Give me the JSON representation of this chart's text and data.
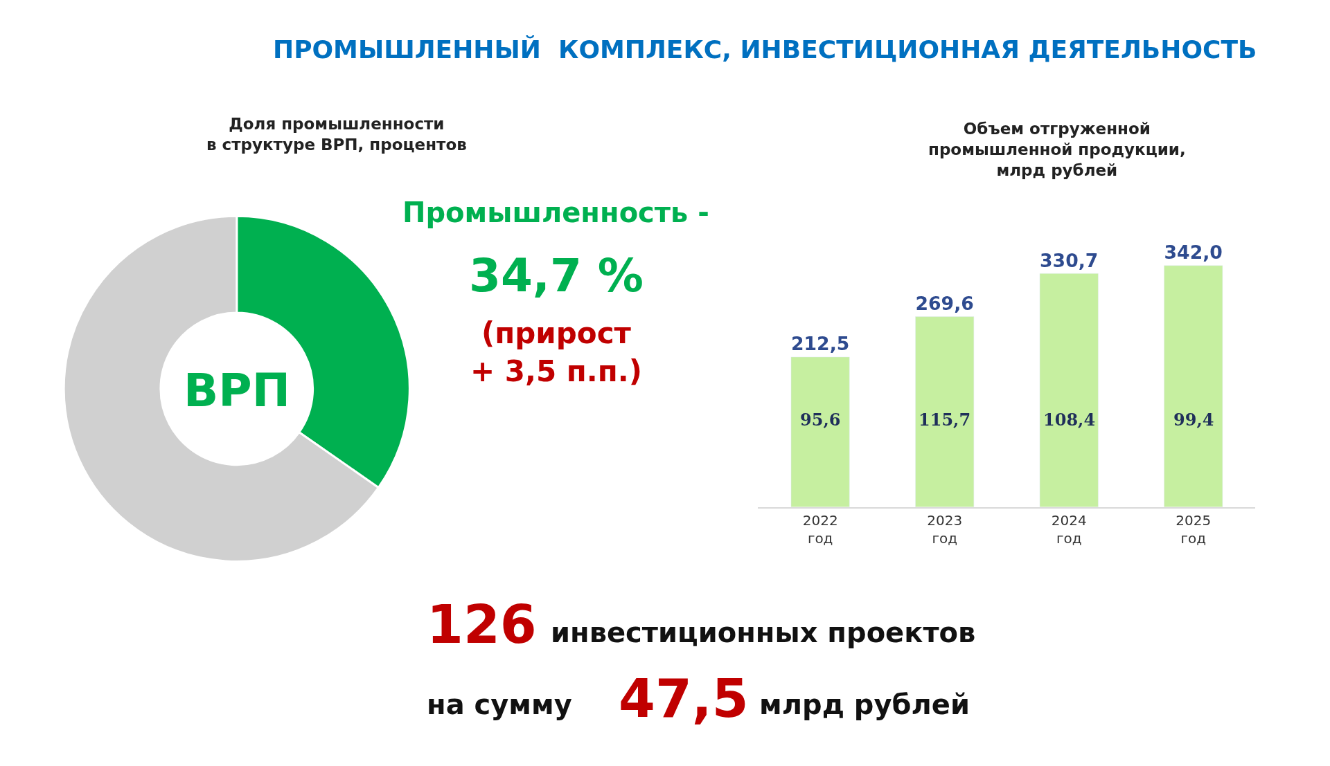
{
  "chart_data": [
    {
      "type": "donut",
      "title": "ПРОМЫШЛЕННЫЙ  КОМПЛЕКС, ИНВЕСТИЦИОННАЯ ДЕЯТЕЛЬНОСТЬ",
      "subtitle": "Доля промышленности\nв структуре ВРП, процентов",
      "categories": [
        null,
        null
      ],
      "values": [
        34.7,
        65.3
      ],
      "colors": [
        "#00b050",
        "#d0d0d0"
      ],
      "annotations": [
        "ВРП",
        "Промышленность -",
        "34,7 %",
        "(прирост\n+ 3,5 п.п.)"
      ]
    },
    {
      "type": "bar",
      "title": "Объем отгруженной\nпромышленной продукции,\nмлрд рублей",
      "categories": [
        "2022\nгод",
        "2023\nгод",
        "2024\nгод",
        "2025\nгод"
      ],
      "values": [
        212.5,
        269.6,
        330.7,
        342.0
      ],
      "value_labels": [
        "212,5",
        "269,6",
        "330,7",
        "342,0"
      ],
      "color": "#c6efa0",
      "annotations": [
        "95,6",
        "115,7",
        "108,4",
        "99,4"
      ]
    },
    {
      "type": "other",
      "annotations": [
        "126",
        "инвестиционных проектов",
        "на сумму",
        "47,5",
        "млрд рублей"
      ]
    }
  ]
}
